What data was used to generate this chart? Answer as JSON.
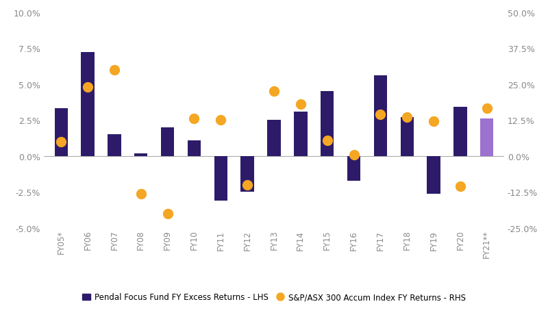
{
  "categories": [
    "FY05*",
    "FY06",
    "FY07",
    "FY08",
    "FY09",
    "FY10",
    "FY11",
    "FY12",
    "FY13",
    "FY14",
    "FY15",
    "FY16",
    "FY17",
    "FY18",
    "FY19",
    "FY20",
    "FY21**"
  ],
  "bar_values": [
    3.3,
    7.2,
    1.5,
    0.2,
    2.0,
    1.1,
    -3.1,
    -2.5,
    2.5,
    3.1,
    4.5,
    -1.7,
    5.6,
    2.7,
    -2.6,
    3.4,
    2.6
  ],
  "dot_values_rhs": [
    5.0,
    24.0,
    30.0,
    -13.0,
    -20.0,
    13.0,
    12.5,
    -10.0,
    22.5,
    18.0,
    5.5,
    0.5,
    14.5,
    13.5,
    12.0,
    -10.5,
    16.5
  ],
  "bar_colors": [
    "#2d1b69",
    "#2d1b69",
    "#2d1b69",
    "#2d1b69",
    "#2d1b69",
    "#2d1b69",
    "#2d1b69",
    "#2d1b69",
    "#2d1b69",
    "#2d1b69",
    "#2d1b69",
    "#2d1b69",
    "#2d1b69",
    "#2d1b69",
    "#2d1b69",
    "#2d1b69",
    "#9b72cf"
  ],
  "dot_color": "#f5a623",
  "lhs_ylim": [
    -5.0,
    10.0
  ],
  "rhs_ylim": [
    -25.0,
    50.0
  ],
  "lhs_yticks": [
    -5.0,
    -2.5,
    0.0,
    2.5,
    5.0,
    7.5,
    10.0
  ],
  "rhs_yticks": [
    -25.0,
    -12.5,
    0.0,
    12.5,
    25.0,
    37.5,
    50.0
  ],
  "legend_bar_label": "Pendal Focus Fund FY Excess Returns - LHS",
  "legend_dot_label": "S&P/ASX 300 Accum Index FY Returns - RHS",
  "bar_color_dark": "#2d1b69",
  "bar_color_light": "#9b72cf",
  "background_color": "#ffffff",
  "zero_line_color": "#aaaaaa",
  "dot_size": 100,
  "tick_color": "#888888",
  "tick_fontsize": 9,
  "xtick_fontsize": 8.5
}
